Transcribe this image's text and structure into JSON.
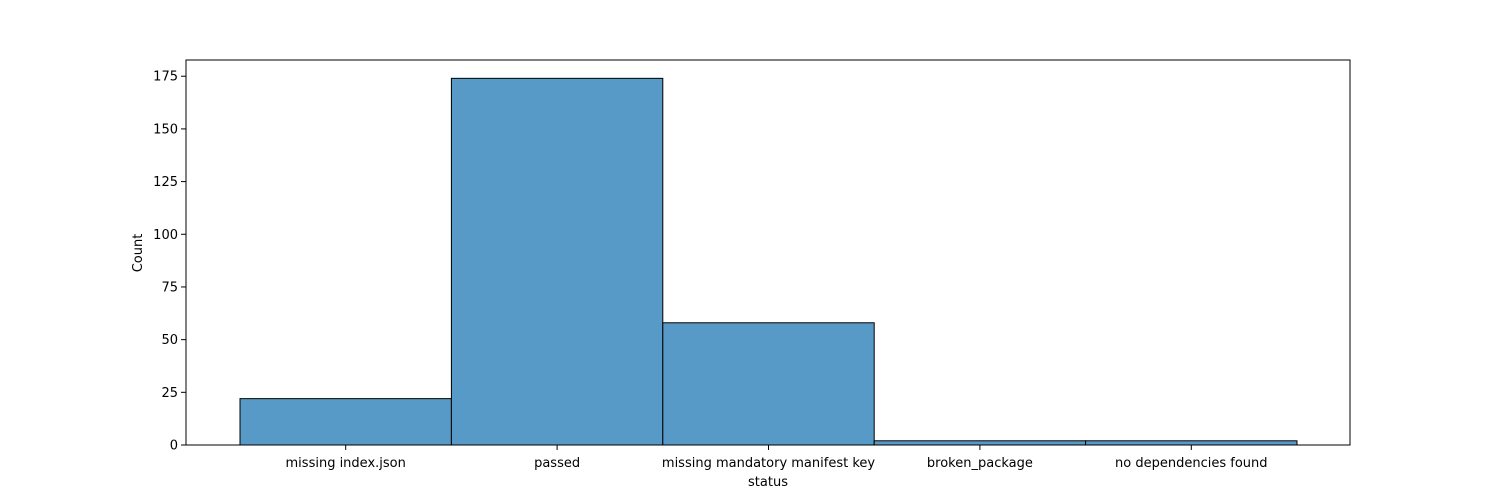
{
  "chart_data": {
    "type": "bar",
    "title": "",
    "xlabel": "status",
    "ylabel": "Count",
    "categories": [
      "missing index.json",
      "passed",
      "missing mandatory manifest key",
      "broken_package",
      "no dependencies found"
    ],
    "values": [
      22,
      174,
      58,
      2,
      2
    ],
    "ylim": [
      0,
      182.7
    ],
    "yticks": [
      0,
      25,
      50,
      75,
      100,
      125,
      150,
      175
    ],
    "grid": false,
    "legend": "none",
    "bar_color": "#5799c7",
    "bar_edge_color": "#000000"
  }
}
